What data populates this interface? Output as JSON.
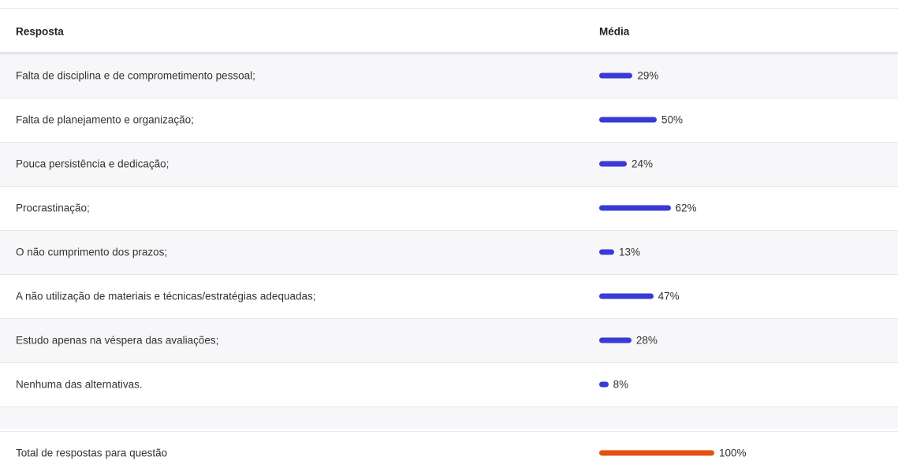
{
  "table": {
    "headers": [
      "Resposta",
      "Média"
    ],
    "rows": [
      {
        "label": "Falta de disciplina e de comprometimento pessoal;",
        "value": 29,
        "value_label": "29%"
      },
      {
        "label": "Falta de planejamento e organização;",
        "value": 50,
        "value_label": "50%"
      },
      {
        "label": "Pouca persistência e dedicação;",
        "value": 24,
        "value_label": "24%"
      },
      {
        "label": "Procrastinação;",
        "value": 62,
        "value_label": "62%"
      },
      {
        "label": "O não cumprimento dos prazos;",
        "value": 13,
        "value_label": "13%"
      },
      {
        "label": "A não utilização de materiais e técnicas/estratégias adequadas;",
        "value": 47,
        "value_label": "47%"
      },
      {
        "label": "Estudo apenas na véspera das avaliações;",
        "value": 28,
        "value_label": "28%"
      },
      {
        "label": "Nenhuma das alternativas.",
        "value": 8,
        "value_label": "8%"
      }
    ],
    "total": {
      "label": "Total de respostas para questão",
      "value": 100,
      "value_label": "100%"
    },
    "bar_color": "#3a3ad6",
    "total_color": "#e5520f"
  }
}
